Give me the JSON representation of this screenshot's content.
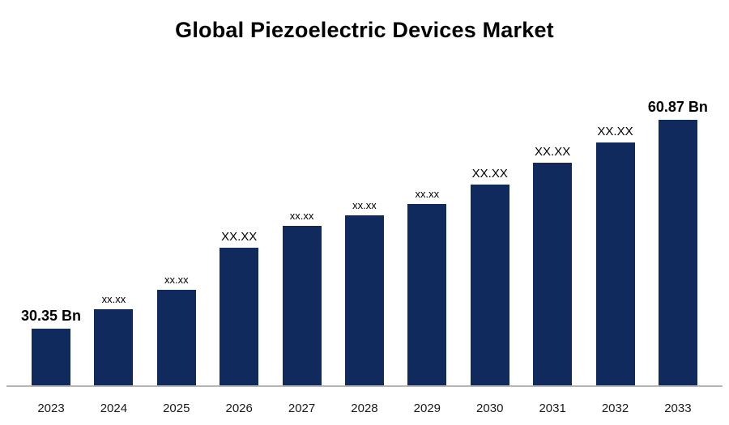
{
  "chart_data": {
    "type": "bar",
    "title": "Global Piezoelectric Devices Market",
    "categories": [
      "2023",
      "2024",
      "2025",
      "2026",
      "2027",
      "2028",
      "2029",
      "2030",
      "2031",
      "2032",
      "2033"
    ],
    "values": [
      30.35,
      33.1,
      36.0,
      42.2,
      45.4,
      46.9,
      48.5,
      51.4,
      54.6,
      57.6,
      60.87
    ],
    "bar_labels": [
      "30.35 Bn",
      "xx.xx",
      "xx.xx",
      "XX.XX",
      "xx.xx",
      "xx.xx",
      "xx.xx",
      "XX.XX",
      "XX.XX",
      "XX.XX",
      "60.87 Bn"
    ],
    "xlabel": "",
    "ylabel": "",
    "unit": "Bn",
    "ylim": [
      22,
      68
    ],
    "grid": false,
    "legend_position": "none",
    "bar_color": "#112a5e",
    "axis_line_color": "#b5b5b5"
  }
}
